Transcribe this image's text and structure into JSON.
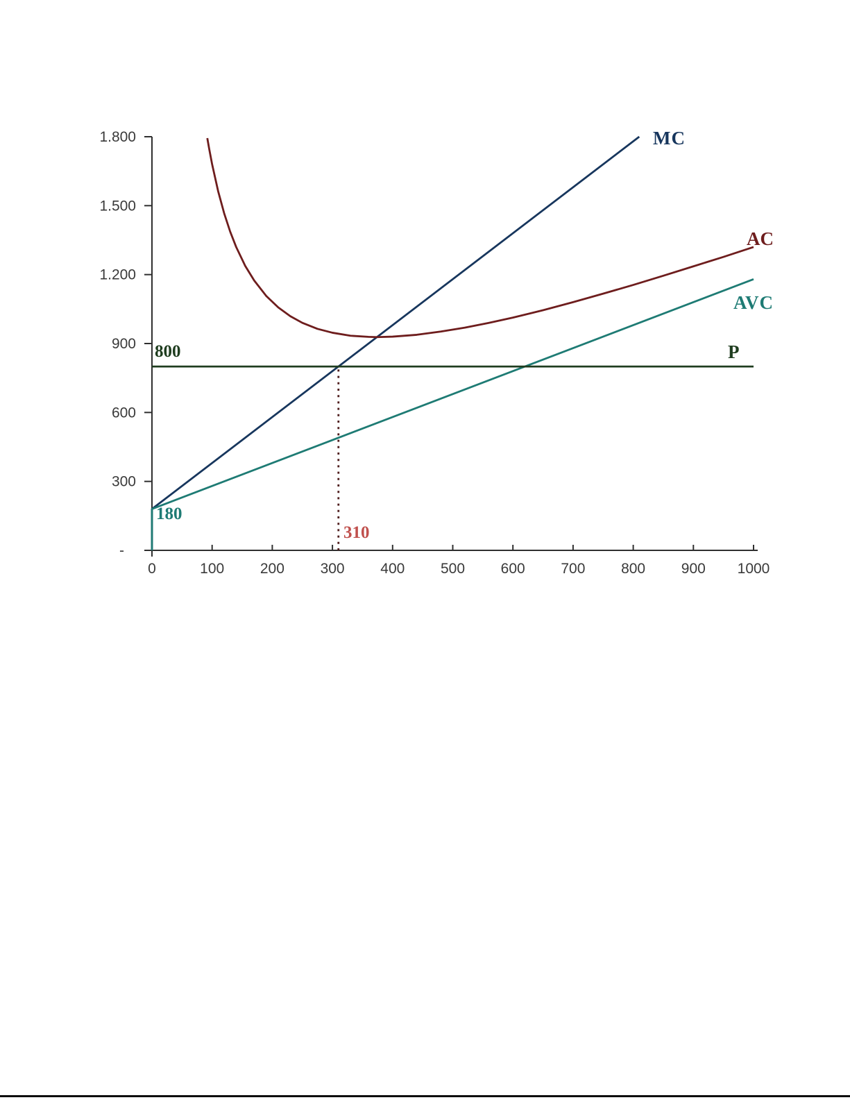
{
  "page": {
    "background": "#ffffff"
  },
  "chart_data": {
    "type": "line",
    "title": "",
    "xlabel": "",
    "ylabel": "",
    "xlim": [
      0,
      1000
    ],
    "ylim": [
      0,
      1800
    ],
    "grid": false,
    "legend": "inline-labels",
    "x_ticks": {
      "values": [
        0,
        100,
        200,
        300,
        400,
        500,
        600,
        700,
        800,
        900,
        1000
      ],
      "labels": [
        "0",
        "100",
        "200",
        "300",
        "400",
        "500",
        "600",
        "700",
        "800",
        "900",
        "1000"
      ]
    },
    "y_ticks": {
      "values": [
        0,
        300,
        600,
        900,
        1200,
        1500,
        1800
      ],
      "labels": [
        "-",
        "300",
        "600",
        "900",
        "1.200",
        "1.500",
        "1.800"
      ]
    },
    "series": [
      {
        "name": "MC",
        "color": "#17365D",
        "width": 2.8,
        "points": [
          [
            0,
            0
          ],
          [
            0,
            180
          ],
          [
            810,
            1800
          ]
        ]
      },
      {
        "name": "AC",
        "color": "#6E1D1D",
        "width": 2.8,
        "points": [
          [
            92,
            1794
          ],
          [
            95,
            1749
          ],
          [
            100,
            1680
          ],
          [
            110,
            1563
          ],
          [
            120,
            1467
          ],
          [
            130,
            1387
          ],
          [
            140,
            1320
          ],
          [
            155,
            1238
          ],
          [
            170,
            1174
          ],
          [
            190,
            1107
          ],
          [
            210,
            1057
          ],
          [
            230,
            1019
          ],
          [
            250,
            990
          ],
          [
            275,
            964
          ],
          [
            300,
            947
          ],
          [
            330,
            934
          ],
          [
            360,
            929
          ],
          [
            374,
            928
          ],
          [
            400,
            930
          ],
          [
            440,
            938
          ],
          [
            480,
            952
          ],
          [
            520,
            969
          ],
          [
            560,
            990
          ],
          [
            600,
            1013
          ],
          [
            650,
            1045
          ],
          [
            700,
            1080
          ],
          [
            750,
            1117
          ],
          [
            800,
            1155
          ],
          [
            850,
            1195
          ],
          [
            900,
            1236
          ],
          [
            950,
            1277
          ],
          [
            1000,
            1320
          ]
        ]
      },
      {
        "name": "AVC",
        "color": "#1E7B74",
        "width": 2.8,
        "points": [
          [
            0,
            0
          ],
          [
            0,
            180
          ],
          [
            1000,
            1180
          ]
        ]
      },
      {
        "name": "P",
        "color": "#1F3D1F",
        "width": 2.8,
        "points": [
          [
            0,
            800
          ],
          [
            1000,
            800
          ]
        ]
      }
    ],
    "guide_line": {
      "name": "profit-max-quantity",
      "color": "#4F1D1D",
      "style": "dotted",
      "width": 2.8,
      "points": [
        [
          310,
          0
        ],
        [
          310,
          800
        ]
      ]
    },
    "labels": {
      "mc": "MC",
      "ac": "AC",
      "avc": "AVC",
      "p": "P",
      "price": "800",
      "intercept": "180",
      "quantity": "310"
    },
    "label_colors": {
      "mc": "#17365D",
      "ac": "#6E1D1D",
      "avc": "#1E7B74",
      "p": "#1F3D1F",
      "price": "#1F3D1F",
      "intercept": "#1E7B74",
      "quantity": "#C0504D"
    },
    "axis_color": "#2F2F2F",
    "tick_text_color": "#3A3A3A"
  }
}
